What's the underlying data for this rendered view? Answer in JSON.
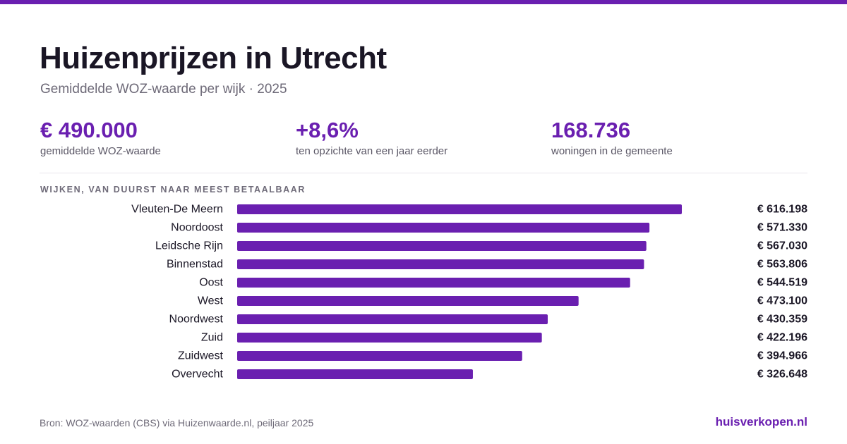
{
  "header": {
    "title": "Huizenprijzen in Utrecht",
    "subtitle": "Gemiddelde WOZ-waarde per wijk · 2025"
  },
  "stats": [
    {
      "value": "€ 490.000",
      "label": "gemiddelde WOZ-waarde"
    },
    {
      "value": "+8,6%",
      "label": "ten opzichte van een jaar eerder"
    },
    {
      "value": "168.736",
      "label": "woningen in de gemeente"
    }
  ],
  "section_label": "WIJKEN, VAN DUURST NAAR MEEST BETAALBAAR",
  "footer": {
    "source": "Bron: WOZ-waarden (CBS) via Huizenwaarde.nl, peiljaar 2025",
    "brand": "huisverkopen.nl"
  },
  "colors": {
    "accent": "#6a1fb0",
    "text": "#1a1625",
    "muted": "#6e6a78"
  },
  "chart_data": {
    "type": "bar",
    "orientation": "horizontal",
    "categories": [
      "Vleuten-De Meern",
      "Noordoost",
      "Leidsche Rijn",
      "Binnenstad",
      "Oost",
      "West",
      "Noordwest",
      "Zuid",
      "Zuidwest",
      "Overvecht"
    ],
    "values": [
      616198,
      571330,
      567030,
      563806,
      544519,
      473100,
      430359,
      422196,
      394966,
      326648
    ],
    "value_labels": [
      "€ 616.198",
      "€ 571.330",
      "€ 567.030",
      "€ 563.806",
      "€ 544.519",
      "€ 473.100",
      "€ 430.359",
      "€ 422.196",
      "€ 394.966",
      "€ 326.648"
    ],
    "xlim": [
      0,
      616198
    ],
    "bar_color": "#6a1fb0",
    "grid": false,
    "legend": "none"
  }
}
